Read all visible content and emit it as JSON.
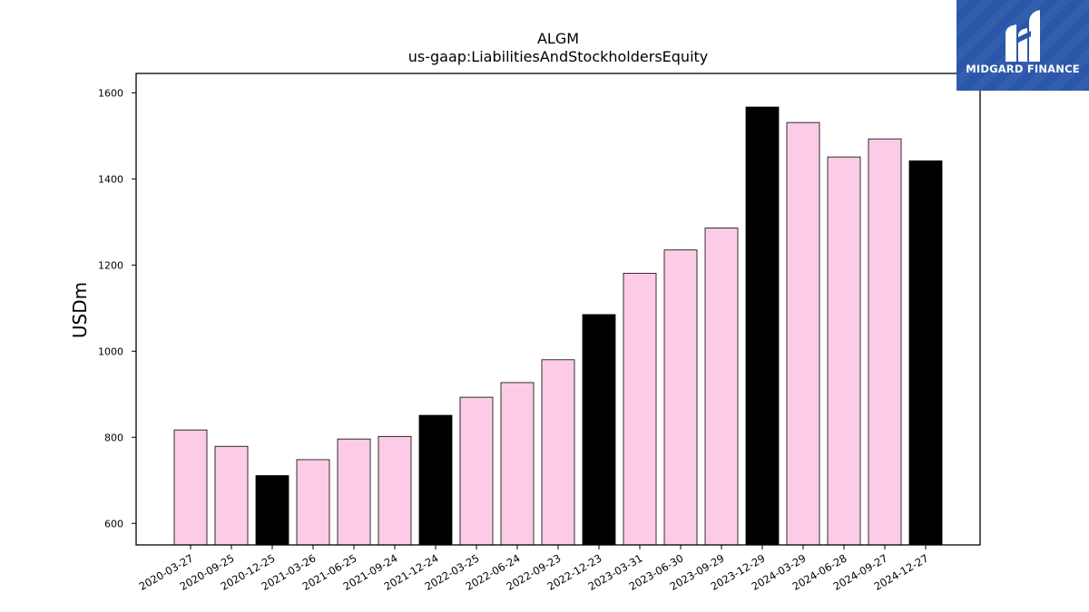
{
  "chart_data": {
    "type": "bar",
    "title": "ALGM",
    "subtitle": "us-gaap:LiabilitiesAndStockholdersEquity",
    "ylabel": "USDm",
    "xlabel": "",
    "ylim": [
      550,
      1645
    ],
    "yticks": [
      600,
      800,
      1000,
      1200,
      1400,
      1600
    ],
    "grid": false,
    "categories": [
      "2020-03-27",
      "2020-09-25",
      "2020-12-25",
      "2021-03-26",
      "2021-06-25",
      "2021-09-24",
      "2021-12-24",
      "2022-03-25",
      "2022-06-24",
      "2022-09-23",
      "2022-12-23",
      "2023-03-31",
      "2023-06-30",
      "2023-09-29",
      "2023-12-29",
      "2024-03-29",
      "2024-06-28",
      "2024-09-27",
      "2024-12-27"
    ],
    "values": [
      817,
      779,
      711,
      748,
      796,
      802,
      851,
      893,
      927,
      980,
      1085,
      1181,
      1235,
      1286,
      1567,
      1531,
      1451,
      1493,
      1442
    ],
    "bar_colors": [
      "#fccce6",
      "#fccce6",
      "#000000",
      "#fccce6",
      "#fccce6",
      "#fccce6",
      "#000000",
      "#fccce6",
      "#fccce6",
      "#fccce6",
      "#000000",
      "#fccce6",
      "#fccce6",
      "#fccce6",
      "#000000",
      "#fccce6",
      "#fccce6",
      "#fccce6",
      "#000000"
    ],
    "colors": {
      "highlight": "#000000",
      "regular": "#fccce6",
      "edge": "#000000"
    }
  },
  "logo": {
    "text": "MIDGARD FINANCE",
    "background": "#2b57aa"
  }
}
